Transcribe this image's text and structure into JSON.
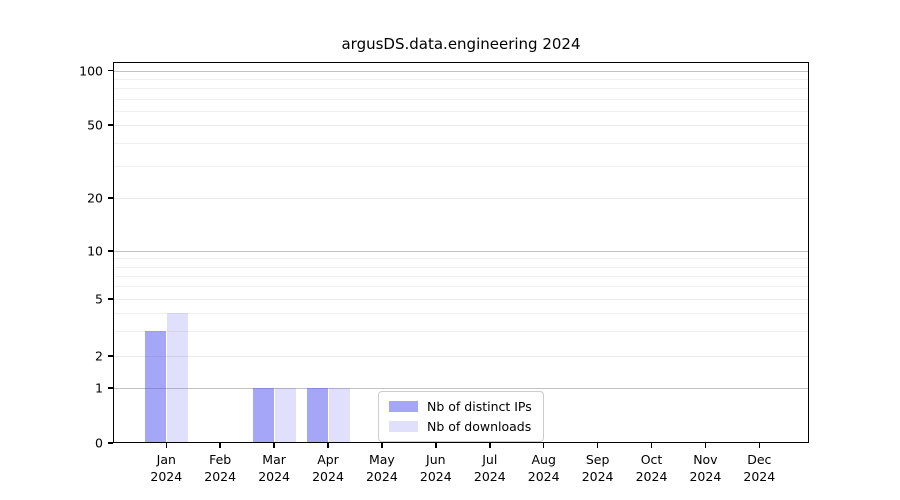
{
  "chart_data": {
    "type": "bar",
    "title": "argusDS.data.engineering 2024",
    "year": "2024",
    "months": [
      "Jan",
      "Feb",
      "Mar",
      "Apr",
      "May",
      "Jun",
      "Jul",
      "Aug",
      "Sep",
      "Oct",
      "Nov",
      "Dec"
    ],
    "categories": [
      "Jan 2024",
      "Feb 2024",
      "Mar 2024",
      "Apr 2024",
      "May 2024",
      "Jun 2024",
      "Jul 2024",
      "Aug 2024",
      "Sep 2024",
      "Oct 2024",
      "Nov 2024",
      "Dec 2024"
    ],
    "series": [
      {
        "name": "Nb of distinct IPs",
        "color": "rgba(85,85,238,0.52)",
        "values": [
          3,
          0,
          1,
          1,
          0,
          0,
          0,
          0,
          0,
          0,
          0,
          0
        ]
      },
      {
        "name": "Nb of downloads",
        "color": "rgba(85,85,238,0.18)",
        "values": [
          4,
          0,
          1,
          1,
          0,
          0,
          0,
          0,
          0,
          0,
          0,
          0
        ]
      }
    ],
    "yscale": "symlog",
    "ylim": [
      0,
      130
    ],
    "yticks": [
      0,
      1,
      2,
      5,
      10,
      20,
      50,
      100
    ],
    "minor_yticks": [
      3,
      4,
      6,
      7,
      8,
      9,
      30,
      40,
      60,
      70,
      80,
      90
    ],
    "grid": "both",
    "legend": {
      "labels": [
        "Nb of distinct IPs",
        "Nb of downloads"
      ],
      "location": "lower center"
    },
    "colors": {
      "bar_distinct_ips": "rgba(85,85,238,0.52)",
      "bar_downloads": "rgba(85,85,238,0.18)",
      "major_gridline": "#c2c2c2",
      "tick_gridline": "#e9e9e9",
      "minor_gridline": "#efefef",
      "spine": "#000000",
      "legend_border": "#cccccc",
      "text": "#000000"
    }
  }
}
